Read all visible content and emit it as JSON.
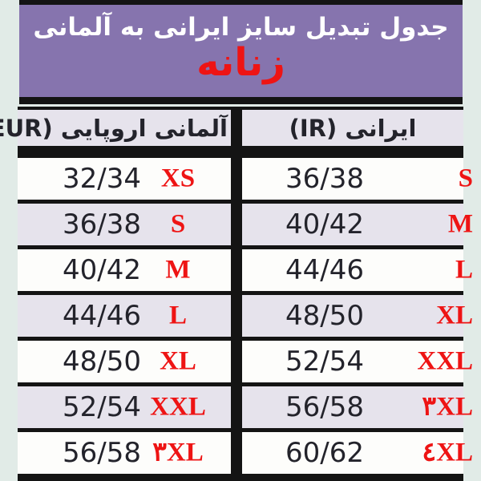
{
  "colors": {
    "page_bg": "#e1ebe7",
    "header_purple": "#8674ae",
    "row_lavender": "#e6e3ec",
    "row_white": "#fdfdfb",
    "line_black": "#141414",
    "accent_red": "#ee1414",
    "title_white": "#ffffff",
    "text_dark": "#23232b"
  },
  "header": {
    "title": "جدول تبدیل سایز ایرانی به آلمانی",
    "subtitle": "زنانه"
  },
  "table": {
    "columns": [
      {
        "key": "eur",
        "label": "آلمانی اروپایی (EUR)"
      },
      {
        "key": "ir",
        "label": "ایرانی (IR)"
      }
    ],
    "rows": [
      {
        "eur_size": "32/34",
        "eur_label": "XS",
        "ir_size": "36/38",
        "ir_label": "S"
      },
      {
        "eur_size": "36/38",
        "eur_label": "S",
        "ir_size": "40/42",
        "ir_label": "M"
      },
      {
        "eur_size": "40/42",
        "eur_label": "M",
        "ir_size": "44/46",
        "ir_label": "L"
      },
      {
        "eur_size": "44/46",
        "eur_label": "L",
        "ir_size": "48/50",
        "ir_label": "XL"
      },
      {
        "eur_size": "48/50",
        "eur_label": "XL",
        "ir_size": "52/54",
        "ir_label": "XXL"
      },
      {
        "eur_size": "52/54",
        "eur_label": "XXL",
        "ir_size": "56/58",
        "ir_label": "۳XL"
      },
      {
        "eur_size": "56/58",
        "eur_label": "۳XL",
        "ir_size": "60/62",
        "ir_label": "٤XL"
      }
    ]
  }
}
